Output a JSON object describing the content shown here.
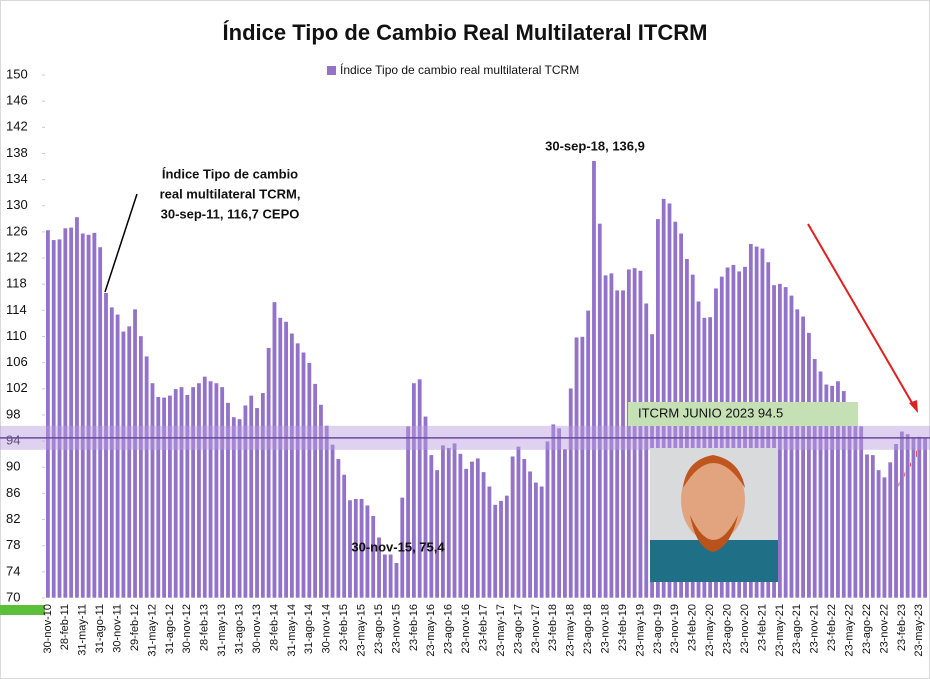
{
  "chart_data": {
    "type": "bar",
    "title": "Índice Tipo de Cambio Real Multilateral ITCRM",
    "series": [
      {
        "name": "Índice Tipo de cambio real multilateral TCRM",
        "color": "#9373c9",
        "values": [
          126.3,
          124.8,
          124.9,
          126.6,
          126.7,
          128.3,
          125.8,
          125.6,
          125.9,
          123.7,
          116.7,
          114.5,
          113.4,
          110.8,
          111.6,
          114.2,
          110.1,
          107.0,
          102.9,
          100.8,
          100.7,
          101.0,
          102.0,
          102.3,
          101.1,
          102.3,
          102.9,
          103.9,
          103.2,
          102.9,
          102.3,
          99.9,
          97.7,
          97.4,
          99.5,
          101.0,
          99.1,
          101.4,
          108.3,
          115.3,
          112.9,
          112.3,
          110.5,
          109.0,
          107.6,
          106.0,
          102.8,
          99.6,
          96.4,
          93.5,
          91.3,
          88.9,
          85.0,
          85.2,
          85.2,
          84.2,
          82.6,
          79.3,
          76.7,
          76.7,
          75.4,
          85.4,
          96.3,
          102.9,
          103.5,
          97.8,
          91.9,
          89.6,
          93.4,
          93.0,
          93.7,
          92.1,
          89.8,
          90.9,
          91.4,
          89.3,
          87.1,
          84.3,
          84.9,
          85.7,
          91.7,
          93.2,
          91.3,
          89.4,
          87.7,
          87.1,
          94.0,
          96.6,
          96.0,
          92.8,
          102.1,
          109.9,
          110.0,
          114.0,
          136.9,
          127.3,
          119.4,
          119.7,
          117.1,
          117.1,
          120.3,
          120.5,
          120.1,
          115.1,
          110.4,
          128.0,
          131.1,
          130.4,
          127.6,
          125.8,
          121.9,
          119.5,
          115.4,
          112.9,
          113.0,
          117.4,
          119.2,
          120.6,
          121.0,
          120.0,
          120.7,
          124.2,
          123.8,
          123.5,
          121.4,
          117.9,
          118.1,
          117.6,
          116.3,
          114.2,
          113.1,
          110.6,
          106.6,
          104.7,
          102.7,
          102.5,
          103.2,
          101.7,
          99.9,
          98.1,
          96.3,
          92.0,
          91.9,
          89.6,
          88.5,
          90.8,
          93.6,
          95.5,
          95.1,
          94.6,
          94.7,
          94.5
        ]
      }
    ],
    "categories": [
      "30-nov-10",
      null,
      null,
      "28-feb-11",
      null,
      null,
      "31-may-11",
      null,
      null,
      "31-ago-11",
      null,
      null,
      "30-nov-11",
      null,
      null,
      "29-feb-12",
      null,
      null,
      "31-may-12",
      null,
      null,
      "31-ago-12",
      null,
      null,
      "30-nov-12",
      null,
      null,
      "28-feb-13",
      null,
      null,
      "31-may-13",
      null,
      null,
      "31-ago-13",
      null,
      null,
      "30-nov-13",
      null,
      null,
      "28-feb-14",
      null,
      null,
      "31-may-14",
      null,
      null,
      "31-ago-14",
      null,
      null,
      "30-nov-14",
      null,
      null,
      "23-feb-15",
      null,
      null,
      "23-may-15",
      null,
      null,
      "23-ago-15",
      null,
      null,
      "23-nov-15",
      null,
      null,
      "23-feb-16",
      null,
      null,
      "23-may-16",
      null,
      null,
      "23-ago-16",
      null,
      null,
      "23-nov-16",
      null,
      null,
      "23-feb-17",
      null,
      null,
      "23-may-17",
      null,
      null,
      "23-ago-17",
      null,
      null,
      "23-nov-17",
      null,
      null,
      "23-feb-18",
      null,
      null,
      "23-may-18",
      null,
      null,
      "23-ago-18",
      null,
      null,
      "23-nov-18",
      null,
      null,
      "23-feb-19",
      null,
      null,
      "23-may-19",
      null,
      null,
      "23-ago-19",
      null,
      null,
      "23-nov-19",
      null,
      null,
      "23-feb-20",
      null,
      null,
      "23-may-20",
      null,
      null,
      "23-ago-20",
      null,
      null,
      "23-nov-20",
      null,
      null,
      "23-feb-21",
      null,
      null,
      "23-may-21",
      null,
      null,
      "23-ago-21",
      null,
      null,
      "23-nov-21",
      null,
      null,
      "23-feb-22",
      null,
      null,
      "23-may-22",
      null,
      null,
      "23-ago-22",
      null,
      null,
      "23-nov-22",
      null,
      null,
      "23-feb-23",
      null,
      null,
      "23-may-23",
      null
    ],
    "ylim": [
      70,
      150
    ],
    "yticks": [
      70,
      74,
      78,
      82,
      86,
      90,
      94,
      98,
      102,
      106,
      110,
      114,
      118,
      122,
      126,
      130,
      134,
      138,
      142,
      146,
      150
    ],
    "reference_line": {
      "value": 94.5,
      "label": "ITCRM JUNIO 2023 94.5"
    },
    "annotations": [
      {
        "lines": [
          "Índice Tipo de cambio",
          "real multilateral TCRM,",
          "30-sep-11, 116,7 CEPO"
        ]
      },
      {
        "lines": [
          "30-sep-18, 136,9"
        ]
      },
      {
        "lines": [
          "30-nov-15, 75,4"
        ]
      }
    ]
  }
}
